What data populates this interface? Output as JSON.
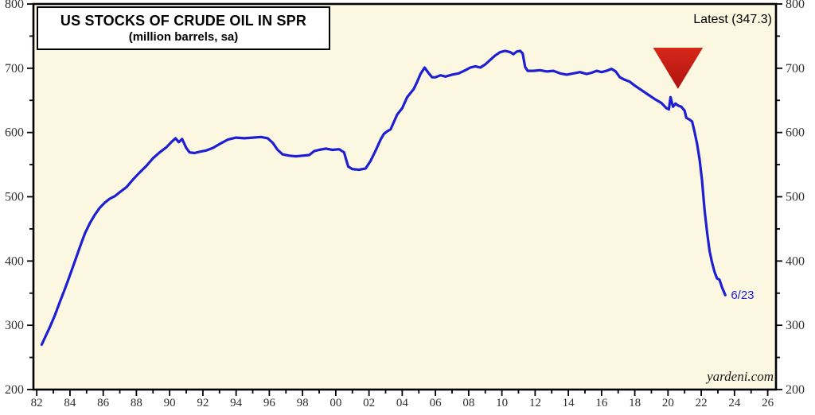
{
  "figure": {
    "title_line1": "US STOCKS OF CRUDE OIL IN SPR",
    "title_line2": "(million barrels, sa)",
    "latest_label": "Latest (347.3)",
    "endpoint_label": "6/23",
    "source_label": "yardeni.com"
  },
  "colors": {
    "line": "#1E1ED2",
    "plot_bg": "#FBF7E1",
    "axis": "#000000",
    "tick_text": "#2E2E2E",
    "endpoint_text": "#1E1ED2",
    "triangle_top": "#D6281A",
    "triangle_bottom": "#B11210"
  },
  "chart_data": {
    "type": "line",
    "title": "US STOCKS OF CRUDE OIL IN SPR",
    "subtitle": "(million barrels, sa)",
    "xlabel": "",
    "ylabel": "million barrels",
    "grid": false,
    "legend_position": "none",
    "ylim": [
      200,
      800
    ],
    "xlim": [
      1981.8,
      2026.5
    ],
    "y_major_ticks": [
      200,
      300,
      400,
      500,
      600,
      700,
      800
    ],
    "y_minor_ticks": [
      250,
      350,
      450,
      550,
      650,
      750
    ],
    "y_tick_label_sides": "both",
    "x_major_tick_years": [
      1982,
      1984,
      1986,
      1988,
      1990,
      1992,
      1994,
      1996,
      1998,
      2000,
      2002,
      2004,
      2006,
      2008,
      2010,
      2012,
      2014,
      2016,
      2018,
      2020,
      2022,
      2024,
      2026
    ],
    "x_tick_labels": [
      "82",
      "84",
      "86",
      "88",
      "90",
      "92",
      "94",
      "96",
      "98",
      "00",
      "02",
      "04",
      "06",
      "08",
      "10",
      "12",
      "14",
      "16",
      "18",
      "20",
      "22",
      "24",
      "26"
    ],
    "x_minor_tick_years": [
      1983,
      1985,
      1987,
      1989,
      1991,
      1993,
      1995,
      1997,
      1999,
      2001,
      2003,
      2005,
      2007,
      2009,
      2011,
      2013,
      2015,
      2017,
      2019,
      2021,
      2023,
      2025
    ],
    "series": [
      {
        "name": "US stocks of crude oil in SPR",
        "color": "#1E1ED2",
        "points": [
          [
            1982.3,
            270
          ],
          [
            1982.55,
            284
          ],
          [
            1982.8,
            298
          ],
          [
            1983.1,
            316
          ],
          [
            1983.4,
            337
          ],
          [
            1983.7,
            357
          ],
          [
            1984.0,
            378
          ],
          [
            1984.3,
            400
          ],
          [
            1984.6,
            422
          ],
          [
            1984.9,
            443
          ],
          [
            1985.2,
            459
          ],
          [
            1985.5,
            472
          ],
          [
            1985.8,
            483
          ],
          [
            1986.1,
            491
          ],
          [
            1986.4,
            497
          ],
          [
            1986.7,
            501
          ],
          [
            1987.0,
            507
          ],
          [
            1987.4,
            515
          ],
          [
            1987.8,
            527
          ],
          [
            1988.2,
            538
          ],
          [
            1988.6,
            548
          ],
          [
            1989.0,
            560
          ],
          [
            1989.4,
            569
          ],
          [
            1989.8,
            577
          ],
          [
            1990.1,
            585
          ],
          [
            1990.35,
            591
          ],
          [
            1990.55,
            585
          ],
          [
            1990.75,
            590
          ],
          [
            1991.0,
            576
          ],
          [
            1991.2,
            569
          ],
          [
            1991.5,
            568
          ],
          [
            1991.8,
            570
          ],
          [
            1992.2,
            572
          ],
          [
            1992.6,
            576
          ],
          [
            1993.0,
            582
          ],
          [
            1993.5,
            589
          ],
          [
            1994.0,
            592
          ],
          [
            1994.5,
            591
          ],
          [
            1995.0,
            592
          ],
          [
            1995.5,
            593
          ],
          [
            1995.9,
            591
          ],
          [
            1996.2,
            584
          ],
          [
            1996.5,
            573
          ],
          [
            1996.8,
            566
          ],
          [
            1997.2,
            564
          ],
          [
            1997.6,
            563
          ],
          [
            1998.0,
            564
          ],
          [
            1998.4,
            565
          ],
          [
            1998.7,
            571
          ],
          [
            1999.0,
            573
          ],
          [
            1999.4,
            575
          ],
          [
            1999.8,
            573
          ],
          [
            2000.2,
            574
          ],
          [
            2000.5,
            569
          ],
          [
            2000.75,
            547
          ],
          [
            2001.0,
            543
          ],
          [
            2001.4,
            542
          ],
          [
            2001.8,
            544
          ],
          [
            2002.1,
            556
          ],
          [
            2002.4,
            572
          ],
          [
            2002.7,
            589
          ],
          [
            2002.9,
            598
          ],
          [
            2003.1,
            602
          ],
          [
            2003.3,
            605
          ],
          [
            2003.7,
            628
          ],
          [
            2004.0,
            638
          ],
          [
            2004.3,
            655
          ],
          [
            2004.7,
            668
          ],
          [
            2004.9,
            679
          ],
          [
            2005.1,
            691
          ],
          [
            2005.35,
            701
          ],
          [
            2005.6,
            692
          ],
          [
            2005.8,
            686
          ],
          [
            2006.0,
            686
          ],
          [
            2006.3,
            689
          ],
          [
            2006.6,
            687
          ],
          [
            2007.0,
            690
          ],
          [
            2007.4,
            692
          ],
          [
            2007.8,
            697
          ],
          [
            2008.1,
            701
          ],
          [
            2008.4,
            703
          ],
          [
            2008.7,
            701
          ],
          [
            2009.0,
            706
          ],
          [
            2009.3,
            713
          ],
          [
            2009.6,
            720
          ],
          [
            2009.9,
            725
          ],
          [
            2010.2,
            727
          ],
          [
            2010.5,
            725
          ],
          [
            2010.7,
            722
          ],
          [
            2010.9,
            726
          ],
          [
            2011.1,
            727
          ],
          [
            2011.25,
            723
          ],
          [
            2011.4,
            702
          ],
          [
            2011.55,
            696
          ],
          [
            2011.9,
            696
          ],
          [
            2012.3,
            697
          ],
          [
            2012.7,
            695
          ],
          [
            2013.1,
            696
          ],
          [
            2013.5,
            692
          ],
          [
            2013.9,
            690
          ],
          [
            2014.3,
            692
          ],
          [
            2014.7,
            694
          ],
          [
            2015.1,
            691
          ],
          [
            2015.4,
            693
          ],
          [
            2015.7,
            696
          ],
          [
            2016.0,
            694
          ],
          [
            2016.3,
            696
          ],
          [
            2016.6,
            699
          ],
          [
            2016.85,
            695
          ],
          [
            2017.1,
            686
          ],
          [
            2017.4,
            682
          ],
          [
            2017.7,
            679
          ],
          [
            2018.0,
            673
          ],
          [
            2018.4,
            666
          ],
          [
            2018.8,
            659
          ],
          [
            2019.2,
            652
          ],
          [
            2019.6,
            646
          ],
          [
            2019.9,
            638
          ],
          [
            2020.05,
            636
          ],
          [
            2020.15,
            655
          ],
          [
            2020.3,
            640
          ],
          [
            2020.45,
            645
          ],
          [
            2020.6,
            642
          ],
          [
            2020.8,
            640
          ],
          [
            2021.0,
            634
          ],
          [
            2021.1,
            623
          ],
          [
            2021.3,
            620
          ],
          [
            2021.45,
            617
          ],
          [
            2021.6,
            601
          ],
          [
            2021.75,
            582
          ],
          [
            2021.9,
            558
          ],
          [
            2022.05,
            525
          ],
          [
            2022.2,
            480
          ],
          [
            2022.35,
            445
          ],
          [
            2022.5,
            416
          ],
          [
            2022.65,
            398
          ],
          [
            2022.8,
            383
          ],
          [
            2022.95,
            373
          ],
          [
            2023.1,
            371
          ],
          [
            2023.25,
            359
          ],
          [
            2023.45,
            347
          ]
        ]
      }
    ],
    "annotations": {
      "latest_value": 347.3,
      "latest_text": "Latest (347.3)",
      "endpoint_text": "6/23",
      "endpoint_x": 2023.45,
      "endpoint_y": 347,
      "red_triangle_marker": {
        "x_year": 2020.6,
        "value_top": 732,
        "value_tip": 668,
        "half_width_years": 1.5
      }
    },
    "source": "yardeni.com"
  }
}
